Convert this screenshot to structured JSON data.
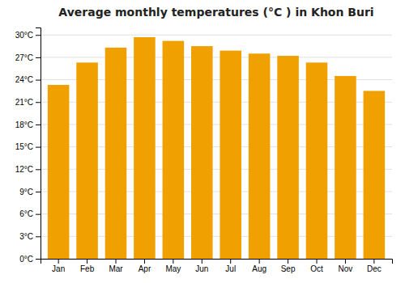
{
  "chart_data": {
    "type": "bar",
    "title": "Average monthly temperatures (°C ) in Khon Buri",
    "categories": [
      "Jan",
      "Feb",
      "Mar",
      "Apr",
      "May",
      "Jun",
      "Jul",
      "Aug",
      "Sep",
      "Oct",
      "Nov",
      "Dec"
    ],
    "values": [
      23.3,
      26.3,
      28.3,
      29.7,
      29.2,
      28.5,
      27.9,
      27.5,
      27.2,
      26.3,
      24.5,
      22.5
    ],
    "color": "#F0A000",
    "ylim": [
      0,
      31
    ],
    "yticks": [
      {
        "value": 0,
        "label": "0°C"
      },
      {
        "value": 3,
        "label": "3°C"
      },
      {
        "value": 6,
        "label": "6°C"
      },
      {
        "value": 9,
        "label": "9°C"
      },
      {
        "value": 12,
        "label": "12°C"
      },
      {
        "value": 15,
        "label": "15°C"
      },
      {
        "value": 18,
        "label": "18°C"
      },
      {
        "value": 21,
        "label": "21°C"
      },
      {
        "value": 24,
        "label": "24°C"
      },
      {
        "value": 27,
        "label": "27°C"
      },
      {
        "value": 30,
        "label": "30°C"
      }
    ],
    "grid": true
  }
}
